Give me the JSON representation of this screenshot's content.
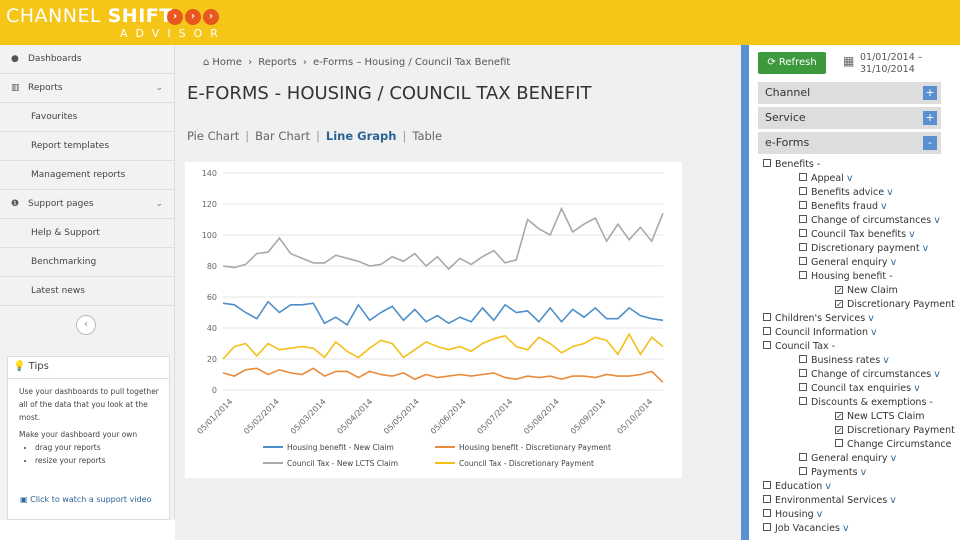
{
  "brand": {
    "name": "CHANNEL ",
    "name_bold": "SHIFT",
    "sub": "ADVISOR",
    "accent": "#f5c518",
    "chevron": "›"
  },
  "sidebar": {
    "items": [
      {
        "label": "Dashboards",
        "icon": "dashboard-icon",
        "glyph": "●"
      },
      {
        "label": "Reports",
        "icon": "bar-chart-icon",
        "glyph": "▥",
        "caret": "⌄"
      },
      {
        "label": "Favourites",
        "sub": true
      },
      {
        "label": "Report templates",
        "sub": true
      },
      {
        "label": "Management reports",
        "sub": true
      },
      {
        "label": "Support pages",
        "icon": "info-icon",
        "glyph": "❶",
        "caret": "⌄"
      },
      {
        "label": "Help & Support",
        "sub": true
      },
      {
        "label": "Benchmarking",
        "sub": true
      },
      {
        "label": "Latest news",
        "sub": true
      }
    ],
    "collapse_glyph": "‹",
    "tips": {
      "title": "Tips",
      "title_glyph": "💡",
      "p1": "Use your dashboards to pull together all of the data that you look at the most.",
      "p2": "Make your dashboard your own",
      "bullets": [
        "drag your reports",
        "resize your reports"
      ],
      "link": "Click to watch a support video"
    }
  },
  "breadcrumb": {
    "home": "Home",
    "home_glyph": "⌂",
    "reports": "Reports",
    "current": "e-Forms – Housing / Council Tax Benefit",
    "sep": "›"
  },
  "page_title": "E-FORMS - HOUSING / COUNCIL TAX BENEFIT",
  "tabs": {
    "pie": "Pie Chart",
    "bar": "Bar Chart",
    "line": "Line Graph",
    "table": "Table",
    "sep": "|"
  },
  "chart_data": {
    "type": "line",
    "ylim": [
      0,
      140
    ],
    "yticks": [
      0,
      20,
      40,
      60,
      80,
      100,
      120,
      140
    ],
    "xticks": [
      "05/01/2014",
      "05/02/2014",
      "05/03/2014",
      "05/04/2014",
      "05/05/2014",
      "05/06/2014",
      "05/07/2014",
      "05/08/2014",
      "05/09/2014",
      "05/10/2014"
    ],
    "n_points": 40,
    "legend_position": "bottom",
    "series": [
      {
        "name": "Housing benefit - New Claim",
        "color": "#4f8fc9",
        "values": [
          56,
          55,
          50,
          46,
          57,
          50,
          55,
          55,
          56,
          43,
          47,
          42,
          55,
          45,
          50,
          54,
          45,
          52,
          44,
          48,
          43,
          47,
          44,
          53,
          45,
          55,
          50,
          51,
          44,
          53,
          44,
          52,
          47,
          53,
          46,
          46,
          53,
          48,
          46,
          45
        ]
      },
      {
        "name": "Housing benefit - Discretionary Payment",
        "color": "#e98b3a",
        "values": [
          11,
          9,
          13,
          14,
          10,
          13,
          11,
          10,
          14,
          9,
          12,
          12,
          8,
          12,
          10,
          9,
          11,
          7,
          10,
          8,
          9,
          10,
          9,
          10,
          11,
          8,
          7,
          9,
          8,
          9,
          7,
          9,
          9,
          8,
          10,
          9,
          9,
          10,
          12,
          5
        ]
      },
      {
        "name": "Council Tax - New LCTS Claim",
        "color": "#a9a9a9",
        "values": [
          80,
          79,
          81,
          88,
          89,
          98,
          88,
          85,
          82,
          82,
          87,
          85,
          83,
          80,
          81,
          86,
          83,
          88,
          80,
          86,
          78,
          85,
          81,
          86,
          90,
          82,
          84,
          110,
          104,
          100,
          117,
          102,
          107,
          111,
          96,
          107,
          97,
          105,
          96,
          114
        ]
      },
      {
        "name": "Council Tax - Discretionary Payment",
        "color": "#f3c01a",
        "values": [
          20,
          28,
          30,
          22,
          30,
          26,
          27,
          28,
          27,
          21,
          31,
          25,
          21,
          27,
          32,
          30,
          21,
          26,
          31,
          28,
          26,
          28,
          25,
          30,
          33,
          35,
          28,
          26,
          34,
          30,
          24,
          28,
          30,
          34,
          32,
          23,
          36,
          23,
          34,
          28
        ]
      }
    ]
  },
  "rightpanel": {
    "refresh": "Refresh",
    "refresh_glyph": "⟳",
    "refresh_color": "#3c9a3c",
    "cal_glyph": "▦",
    "date_from": "01/01/2014 –",
    "date_to": "31/10/2014",
    "accordions": [
      {
        "label": "Channel",
        "toggle": "+"
      },
      {
        "label": "Service",
        "toggle": "+"
      },
      {
        "label": "e-Forms",
        "toggle": "-"
      }
    ],
    "tree": [
      {
        "label": "Benefits",
        "indent": 0,
        "suffix": " -",
        "checked": false
      },
      {
        "label": "Appeal",
        "indent": 1,
        "suffix": " v",
        "checked": false
      },
      {
        "label": "Benefits advice",
        "indent": 1,
        "suffix": " v",
        "checked": false
      },
      {
        "label": "Benefits fraud",
        "indent": 1,
        "suffix": " v",
        "checked": false
      },
      {
        "label": "Change of circumstances",
        "indent": 1,
        "suffix": " v",
        "checked": false
      },
      {
        "label": "Council Tax benefits",
        "indent": 1,
        "suffix": " v",
        "checked": false
      },
      {
        "label": "Discretionary payment",
        "indent": 1,
        "suffix": " v",
        "checked": false
      },
      {
        "label": "General enquiry",
        "indent": 1,
        "suffix": " v",
        "checked": false
      },
      {
        "label": "Housing benefit",
        "indent": 1,
        "suffix": " -",
        "checked": false
      },
      {
        "label": "New Claim",
        "indent": 2,
        "suffix": "",
        "checked": true
      },
      {
        "label": "Discretionary Payment",
        "indent": 2,
        "suffix": "",
        "checked": true
      },
      {
        "label": "Children's Services",
        "indent": 0,
        "suffix": " v",
        "checked": false
      },
      {
        "label": "Council Information",
        "indent": 0,
        "suffix": " v",
        "checked": false
      },
      {
        "label": "Council Tax",
        "indent": 0,
        "suffix": " -",
        "checked": false
      },
      {
        "label": "Business rates",
        "indent": 1,
        "suffix": " v",
        "checked": false
      },
      {
        "label": "Change of circumstances",
        "indent": 1,
        "suffix": " v",
        "checked": false
      },
      {
        "label": "Council tax enquiries",
        "indent": 1,
        "suffix": " v",
        "checked": false
      },
      {
        "label": "Discounts & exemptions",
        "indent": 1,
        "suffix": " -",
        "checked": false
      },
      {
        "label": "New LCTS Claim",
        "indent": 2,
        "suffix": "",
        "checked": true
      },
      {
        "label": "Discretionary Payment",
        "indent": 2,
        "suffix": "",
        "checked": true
      },
      {
        "label": "Change Circumstance",
        "indent": 2,
        "suffix": "",
        "checked": false
      },
      {
        "label": "General enquiry",
        "indent": 1,
        "suffix": " v",
        "checked": false
      },
      {
        "label": "Payments",
        "indent": 1,
        "suffix": " v",
        "checked": false
      },
      {
        "label": "Education",
        "indent": 0,
        "suffix": " v",
        "checked": false
      },
      {
        "label": "Environmental Services",
        "indent": 0,
        "suffix": " v",
        "checked": false
      },
      {
        "label": "Housing",
        "indent": 0,
        "suffix": " v",
        "checked": false
      },
      {
        "label": "Job Vacancies",
        "indent": 0,
        "suffix": " v",
        "checked": false
      }
    ],
    "check_glyph": "✓"
  }
}
